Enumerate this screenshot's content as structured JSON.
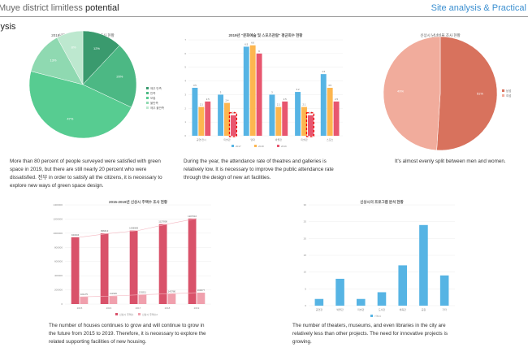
{
  "header": {
    "title_light": "Muye district limitless ",
    "title_bold": "potential",
    "right": "Site analysis & Practical",
    "section": "lysis"
  },
  "captions": [
    "More than 80 percent of people surveyed were satisfied with green space in 2019, but there are still nearly 20 percent who were dissatisfied. 전부 in order to satisfy all the citizens, it is necessary to explore new ways of green space design.",
    "During the year, the attendance rate of theatres and galleries is relatively low. It is necessary to improve the public attendance rate through the design of new art facilities.",
    "It's almost evenly split between men and women.",
    "The number of houses continues to grow and will continue to grow in the future from 2015 to 2019. Therefore, it is necessary to explore the related supporting facilities of new housing.",
    "The number of theaters, museums, and even libraries in the city are relatively less than other projects. The need for innovative projects is growing."
  ],
  "chart_data": [
    {
      "type": "pie",
      "title": "2019년도 신상시 \"녹지 만족도\" 조사 현황",
      "labels": [
        "매우 만족",
        "만족",
        "보통",
        "불만족",
        "매우 불만족"
      ],
      "values": [
        12,
        20,
        47,
        13,
        8
      ],
      "colors": [
        "#3a9a6e",
        "#4cb884",
        "#57cc91",
        "#8fd9b1",
        "#bde8cf"
      ]
    },
    {
      "type": "bar",
      "title": "2019년 \"문화예술 및 스포츠관람\" 평균회수 현황",
      "categories": [
        "공연/전시",
        "미술관",
        "영화",
        "박물관",
        "미술관",
        "스포츠"
      ],
      "series": [
        {
          "name": "2017",
          "values": [
            3.5,
            3,
            6.5,
            3,
            3.2,
            4.5
          ],
          "color": "#56b4e4"
        },
        {
          "name": "2018",
          "values": [
            2.1,
            2.4,
            6.6,
            2.1,
            2.1,
            3.5
          ],
          "color": "#fdb64f"
        },
        {
          "name": "2019",
          "values": [
            2.5,
            1.5,
            6,
            2.5,
            1.5,
            2.5
          ],
          "color": "#e8566f"
        }
      ],
      "ylim": [
        0,
        7
      ],
      "highlight": [
        1,
        4
      ]
    },
    {
      "type": "pie",
      "title": "신상시 남녀비율 조사 현황",
      "labels": [
        "남성",
        "여성"
      ],
      "values": [
        51,
        49
      ],
      "colors": [
        "#d8725d",
        "#f1ac9c"
      ]
    },
    {
      "type": "bar",
      "title": "2015-2019년 신상시 주택수 조사 현황",
      "categories": [
        "2015",
        "2016",
        "2017",
        "2018",
        "2019"
      ],
      "series": [
        {
          "name": "신상시 주택수",
          "values": [
            943204,
            996613,
            1036983,
            1127800,
            1207010
          ],
          "color": "#d9526a"
        },
        {
          "name": "신상시 주택수2",
          "values": [
            101175,
            111929,
            130211,
            143780,
            160077
          ],
          "color": "#f0a0ad"
        }
      ],
      "ylim": [
        0,
        1400000
      ]
    },
    {
      "type": "bar",
      "title": "신상시의 프로그램 분석 현황",
      "categories": [
        "공연장",
        "박물관",
        "미술관",
        "도서관",
        "체육관",
        "공원",
        "기타"
      ],
      "series": [
        {
          "name": "신상시",
          "values": [
            2,
            8,
            2,
            4,
            12,
            24,
            9
          ],
          "color": "#56b4e4"
        }
      ],
      "ylim": [
        0,
        30
      ]
    }
  ]
}
